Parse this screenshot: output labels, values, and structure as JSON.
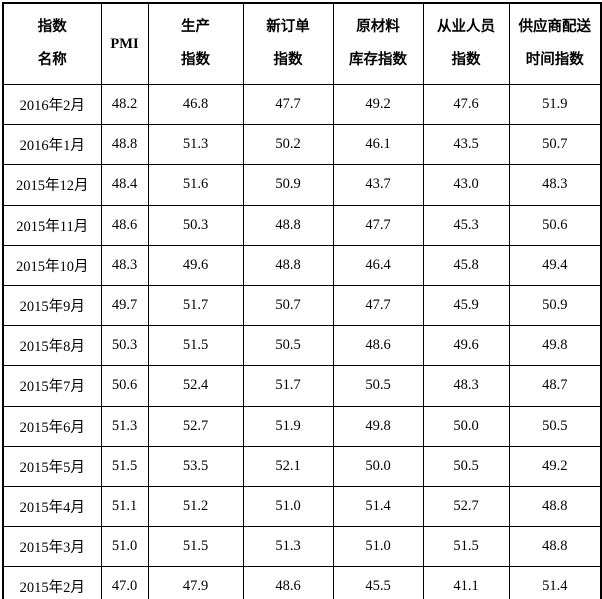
{
  "page": {
    "background_color": "#ffffff",
    "border_color": "#000000",
    "text_color": "#000000"
  },
  "chart_data": {
    "type": "table",
    "columns": [
      {
        "line1": "指数",
        "line2": "名称"
      },
      {
        "line1": "PMI",
        "line2": ""
      },
      {
        "line1": "生产",
        "line2": "指数"
      },
      {
        "line1": "新订单",
        "line2": "指数"
      },
      {
        "line1": "原材料",
        "line2": "库存指数"
      },
      {
        "line1": "从业人员",
        "line2": "指数"
      },
      {
        "line1": "供应商配送",
        "line2": "时间指数"
      }
    ],
    "rows": [
      {
        "month": "2016年2月",
        "values": [
          "48.2",
          "46.8",
          "47.7",
          "49.2",
          "47.6",
          "51.9"
        ]
      },
      {
        "month": "2016年1月",
        "values": [
          "48.8",
          "51.3",
          "50.2",
          "46.1",
          "43.5",
          "50.7"
        ]
      },
      {
        "month": "2015年12月",
        "values": [
          "48.4",
          "51.6",
          "50.9",
          "43.7",
          "43.0",
          "48.3"
        ]
      },
      {
        "month": "2015年11月",
        "values": [
          "48.6",
          "50.3",
          "48.8",
          "47.7",
          "45.3",
          "50.6"
        ]
      },
      {
        "month": "2015年10月",
        "values": [
          "48.3",
          "49.6",
          "48.8",
          "46.4",
          "45.8",
          "49.4"
        ]
      },
      {
        "month": "2015年9月",
        "values": [
          "49.7",
          "51.7",
          "50.7",
          "47.7",
          "45.9",
          "50.9"
        ]
      },
      {
        "month": "2015年8月",
        "values": [
          "50.3",
          "51.5",
          "50.5",
          "48.6",
          "49.6",
          "49.8"
        ]
      },
      {
        "month": "2015年7月",
        "values": [
          "50.6",
          "52.4",
          "51.7",
          "50.5",
          "48.3",
          "48.7"
        ]
      },
      {
        "month": "2015年6月",
        "values": [
          "51.3",
          "52.7",
          "51.9",
          "49.8",
          "50.0",
          "50.5"
        ]
      },
      {
        "month": "2015年5月",
        "values": [
          "51.5",
          "53.5",
          "52.1",
          "50.0",
          "50.5",
          "49.2"
        ]
      },
      {
        "month": "2015年4月",
        "values": [
          "51.1",
          "51.2",
          "51.0",
          "51.4",
          "52.7",
          "48.8"
        ]
      },
      {
        "month": "2015年3月",
        "values": [
          "51.0",
          "51.5",
          "51.3",
          "51.0",
          "51.5",
          "48.8"
        ]
      },
      {
        "month": "2015年2月",
        "values": [
          "47.0",
          "47.9",
          "48.6",
          "45.5",
          "41.1",
          "51.4"
        ]
      }
    ]
  }
}
